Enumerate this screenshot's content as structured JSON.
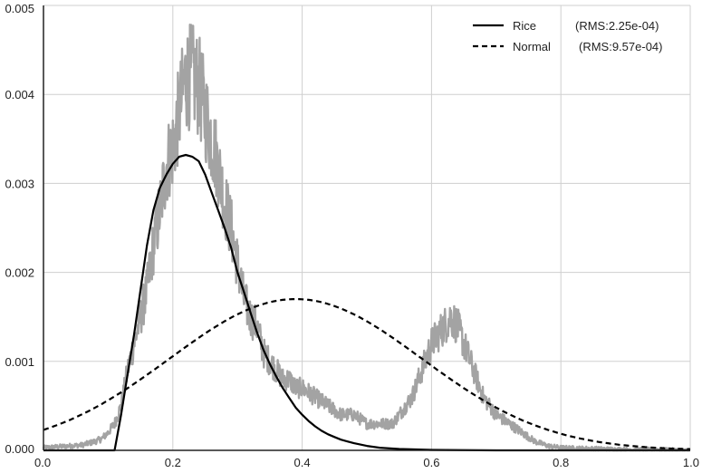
{
  "chart_data": {
    "type": "line",
    "xlim": [
      0,
      1
    ],
    "ylim": [
      0,
      0.005
    ],
    "grid": true,
    "legend_position": "top-right",
    "x_ticks": [
      "0.0",
      "0.2",
      "0.4",
      "0.6",
      "0.8",
      "1.0"
    ],
    "y_ticks": [
      "0.000",
      "0.001",
      "0.002",
      "0.003",
      "0.004",
      "0.005"
    ],
    "series": [
      {
        "name": "Rice",
        "rms": "(RMS:2.25e-04)",
        "style": "solid",
        "color": "#000000",
        "x": [
          0.11,
          0.12,
          0.13,
          0.14,
          0.15,
          0.16,
          0.17,
          0.18,
          0.19,
          0.2,
          0.21,
          0.22,
          0.23,
          0.24,
          0.25,
          0.26,
          0.27,
          0.28,
          0.29,
          0.3,
          0.31,
          0.32,
          0.33,
          0.34,
          0.35,
          0.36,
          0.37,
          0.38,
          0.39,
          0.4,
          0.41,
          0.42,
          0.43,
          0.44,
          0.45,
          0.46,
          0.47,
          0.48,
          0.5,
          0.52,
          0.55,
          0.6,
          0.7,
          0.8,
          1.0
        ],
        "y": [
          0.0,
          0.0004,
          0.00085,
          0.0013,
          0.0018,
          0.0023,
          0.0027,
          0.00295,
          0.0031,
          0.00322,
          0.0033,
          0.00332,
          0.0033,
          0.00325,
          0.0031,
          0.0029,
          0.0027,
          0.0025,
          0.00228,
          0.002,
          0.00178,
          0.00155,
          0.00133,
          0.00113,
          0.00097,
          0.00083,
          0.0007,
          0.00059,
          0.00048,
          0.0004,
          0.00033,
          0.00027,
          0.00022,
          0.00018,
          0.00015,
          0.00012,
          0.0001,
          8e-05,
          5e-05,
          3e-05,
          1.5e-05,
          5e-06,
          0.0,
          0.0,
          0.0
        ]
      },
      {
        "name": "Normal",
        "rms": "(RMS:9.57e-04)",
        "style": "dashed",
        "color": "#000000",
        "mean": 0.39,
        "sd": 0.195,
        "peak": 0.0017,
        "x": [
          0.0,
          0.05,
          0.1,
          0.15,
          0.2,
          0.25,
          0.3,
          0.35,
          0.4,
          0.45,
          0.5,
          0.55,
          0.6,
          0.65,
          0.7,
          0.75,
          0.8,
          0.85,
          0.9,
          0.95,
          1.0
        ],
        "y": [
          0.00023,
          0.00037,
          0.00056,
          0.00079,
          0.00106,
          0.00132,
          0.00153,
          0.00166,
          0.0017,
          0.00162,
          0.00146,
          0.00123,
          0.00095,
          0.00069,
          0.00048,
          0.0003,
          0.00018,
          0.0001,
          5e-05,
          2.5e-05,
          1e-05
        ]
      },
      {
        "name": "",
        "style": "solid",
        "color": "#a3a3a3",
        "x": [
          0.0,
          0.02,
          0.04,
          0.06,
          0.08,
          0.09,
          0.1,
          0.11,
          0.12,
          0.13,
          0.14,
          0.15,
          0.16,
          0.17,
          0.18,
          0.19,
          0.2,
          0.21,
          0.22,
          0.23,
          0.24,
          0.25,
          0.26,
          0.27,
          0.28,
          0.29,
          0.3,
          0.31,
          0.32,
          0.33,
          0.34,
          0.35,
          0.36,
          0.37,
          0.38,
          0.39,
          0.4,
          0.42,
          0.44,
          0.46,
          0.48,
          0.5,
          0.52,
          0.54,
          0.55,
          0.56,
          0.57,
          0.58,
          0.59,
          0.6,
          0.61,
          0.62,
          0.63,
          0.64,
          0.65,
          0.66,
          0.67,
          0.68,
          0.7,
          0.72,
          0.74,
          0.76,
          0.78,
          0.8,
          0.85,
          0.9,
          0.95,
          1.0
        ],
        "y": [
          3e-05,
          4e-05,
          5e-05,
          6e-05,
          0.0001,
          0.00013,
          0.0002,
          0.0003,
          0.0005,
          0.0009,
          0.0012,
          0.0015,
          0.0018,
          0.0023,
          0.0027,
          0.0032,
          0.0034,
          0.0038,
          0.0042,
          0.0042,
          0.0041,
          0.0038,
          0.0035,
          0.0032,
          0.0028,
          0.0025,
          0.0021,
          0.0017,
          0.0015,
          0.0014,
          0.0011,
          0.001,
          0.0009,
          0.0008,
          0.0008,
          0.0007,
          0.0007,
          0.0006,
          0.0005,
          0.0004,
          0.0004,
          0.0003,
          0.0003,
          0.0003,
          0.0004,
          0.0005,
          0.0006,
          0.0008,
          0.001,
          0.0012,
          0.0013,
          0.0014,
          0.0015,
          0.0014,
          0.0012,
          0.001,
          0.0008,
          0.0006,
          0.0004,
          0.0003,
          0.0002,
          0.0001,
          5e-05,
          3e-05,
          2e-05,
          1e-05,
          1e-05,
          0.0
        ]
      }
    ]
  }
}
